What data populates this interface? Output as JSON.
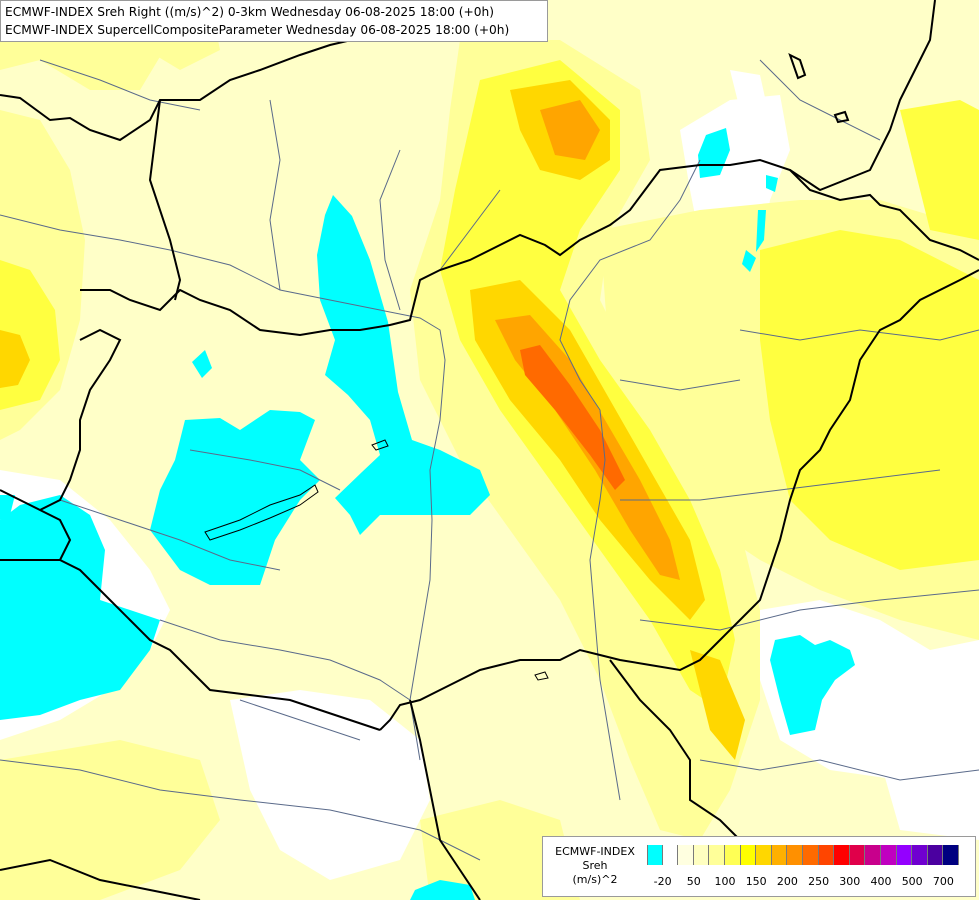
{
  "header": {
    "line1": "ECMWF-INDEX Sreh Right ((m/s)^2) 0-3km Wednesday 06-08-2025 18:00 (+0h)",
    "line2": "ECMWF-INDEX SupercellCompositeParameter Wednesday 06-08-2025 18:00 (+0h)"
  },
  "legend": {
    "title_lines": [
      "ECMWF-INDEX",
      "Sreh",
      "(m/s)^2"
    ],
    "tick_labels": [
      "-20",
      "50",
      "100",
      "150",
      "200",
      "250",
      "300",
      "400",
      "500",
      "700"
    ],
    "colors": [
      "#00ffff",
      "#ffffff",
      "#ffffe0",
      "#ffffc0",
      "#ffff99",
      "#ffff55",
      "#ffff00",
      "#ffd700",
      "#ffb000",
      "#ff9000",
      "#ff6a00",
      "#ff4500",
      "#ff0000",
      "#e0004a",
      "#c8008c",
      "#c000c0",
      "#9400ff",
      "#7000d0",
      "#4b00a0",
      "#000080"
    ]
  },
  "map": {
    "colors": {
      "background": "#ffffc8",
      "white_area": "#ffffff",
      "cyan": "#00ffff",
      "light_yellow": "#ffff99",
      "yellow": "#ffff40",
      "gold": "#ffd700",
      "orange": "#ffa500",
      "dark_orange": "#ff6a00",
      "border": "#000000",
      "river": "#5a6a8a"
    }
  }
}
